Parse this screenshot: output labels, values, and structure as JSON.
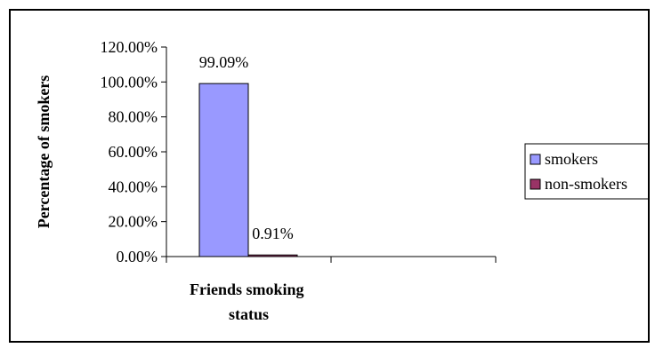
{
  "chart_data": {
    "type": "bar",
    "categories": [
      "Friends smoking status"
    ],
    "category_lines": [
      "Friends smoking",
      "status"
    ],
    "series": [
      {
        "name": "smokers",
        "values": [
          99.09
        ],
        "color": "#9999ff"
      },
      {
        "name": "non-smokers",
        "values": [
          0.91
        ],
        "color": "#993366"
      }
    ],
    "data_labels": [
      "99.09%",
      "0.91%"
    ],
    "ylabel": "Percentage of smokers",
    "xlabel": "",
    "ylim": [
      0,
      120
    ],
    "yticks": [
      0,
      20,
      40,
      60,
      80,
      100,
      120
    ],
    "ytick_labels": [
      "0.00%",
      "20.00%",
      "40.00%",
      "60.00%",
      "80.00%",
      "100.00%",
      "120.00%"
    ],
    "grid": false,
    "legend_position": "right"
  }
}
